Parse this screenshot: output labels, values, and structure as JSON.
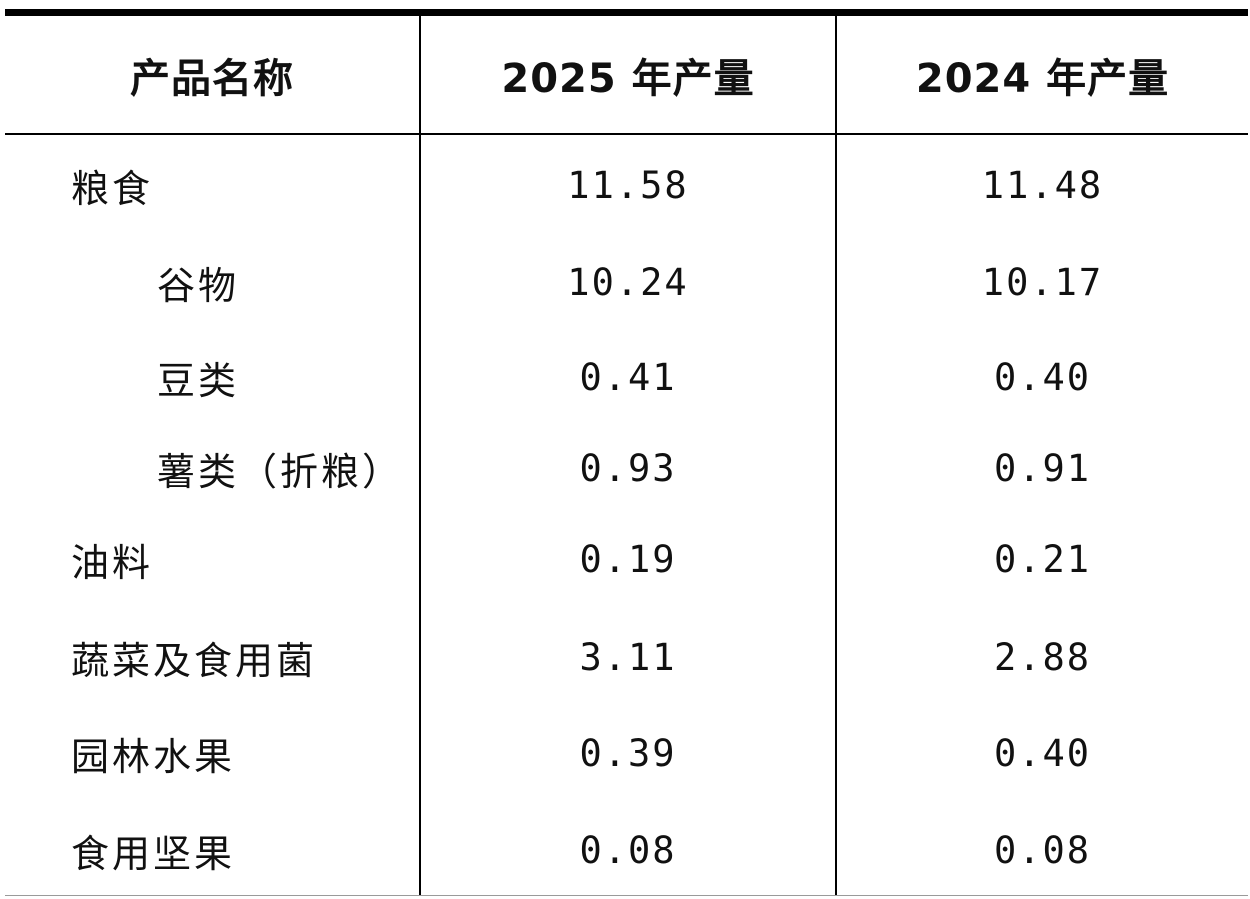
{
  "table": {
    "headers": [
      "产品名称",
      "2025 年产量",
      "2024 年产量"
    ],
    "rows": [
      {
        "name": "粮食",
        "y2025": "11.58",
        "y2024": "11.48",
        "indent": false
      },
      {
        "name": "谷物",
        "y2025": "10.24",
        "y2024": "10.17",
        "indent": true
      },
      {
        "name": "豆类",
        "y2025": "0.41",
        "y2024": "0.40",
        "indent": true
      },
      {
        "name": "薯类（折粮）",
        "y2025": "0.93",
        "y2024": "0.91",
        "indent": true
      },
      {
        "name": "油料",
        "y2025": "0.19",
        "y2024": "0.21",
        "indent": false
      },
      {
        "name": "蔬菜及食用菌",
        "y2025": "3.11",
        "y2024": "2.88",
        "indent": false
      },
      {
        "name": "园林水果",
        "y2025": "0.39",
        "y2024": "0.40",
        "indent": false
      },
      {
        "name": "食用坚果",
        "y2025": "0.08",
        "y2024": "0.08",
        "indent": false
      }
    ]
  }
}
